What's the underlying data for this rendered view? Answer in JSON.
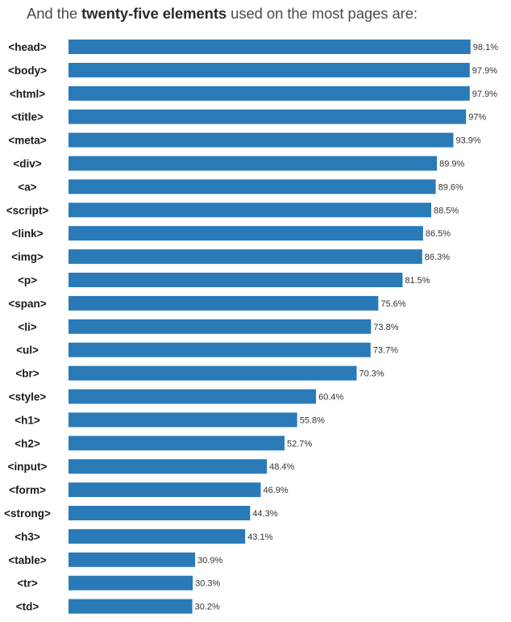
{
  "heading": {
    "prefix": "And the ",
    "emphasis": "twenty-five elements",
    "suffix": " used on the most pages are:"
  },
  "chart_data": {
    "type": "bar",
    "orientation": "horizontal",
    "bar_color": "#2a7ab8",
    "value_suffix": "%",
    "categories": [
      "<head>",
      "<body>",
      "<html>",
      "<title>",
      "<meta>",
      "<div>",
      "<a>",
      "<script>",
      "<link>",
      "<img>",
      "<p>",
      "<span>",
      "<li>",
      "<ul>",
      "<br>",
      "<style>",
      "<h1>",
      "<h2>",
      "<input>",
      "<form>",
      "<strong>",
      "<h3>",
      "<table>",
      "<tr>",
      "<td>"
    ],
    "values": [
      98.1,
      97.9,
      97.9,
      97,
      93.9,
      89.9,
      89.6,
      88.5,
      86.5,
      86.3,
      81.5,
      75.6,
      73.8,
      73.7,
      70.3,
      60.4,
      55.8,
      52.7,
      48.4,
      46.9,
      44.3,
      43.1,
      30.9,
      30.3,
      30.2
    ],
    "value_labels": [
      "98.1%",
      "97.9%",
      "97.9%",
      "97%",
      "93.9%",
      "89.9%",
      "89.6%",
      "88.5%",
      "86.5%",
      "86.3%",
      "81.5%",
      "75.6%",
      "73.8%",
      "73.7%",
      "70.3%",
      "60.4%",
      "55.8%",
      "52.7%",
      "48.4%",
      "46.9%",
      "44.3%",
      "43.1%",
      "30.9%",
      "30.3%",
      "30.2%"
    ],
    "xlim": [
      0,
      100
    ],
    "grid": false,
    "legend": "none"
  }
}
